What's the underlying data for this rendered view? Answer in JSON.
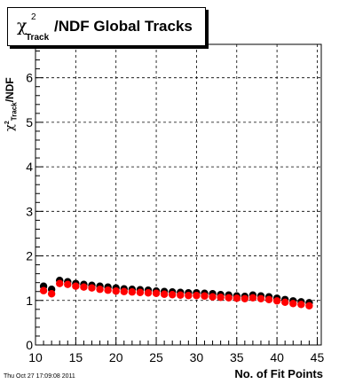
{
  "chart_data": {
    "type": "scatter",
    "title": "/NDF  Global Tracks",
    "title_symbol": "χ",
    "title_sup": "2",
    "title_sub": "Track",
    "ylabel": "/NDF",
    "ylabel_symbol": "χ",
    "ylabel_sup": "2",
    "ylabel_sub": "Track",
    "xlabel": "No. of Fit Points",
    "xlim": [
      10,
      45.5
    ],
    "ylim": [
      0,
      6.75
    ],
    "x_ticks": [
      10,
      15,
      20,
      25,
      30,
      35,
      40,
      45
    ],
    "y_ticks": [
      0,
      1,
      2,
      3,
      4,
      5,
      6
    ],
    "grid": true,
    "series": [
      {
        "color": "#000000",
        "x": [
          11,
          12,
          13,
          14,
          15,
          16,
          17,
          18,
          19,
          20,
          21,
          22,
          23,
          24,
          25,
          26,
          27,
          28,
          29,
          30,
          31,
          32,
          33,
          34,
          35,
          36,
          37,
          38,
          39,
          40,
          41,
          42,
          43,
          44
        ],
        "y": [
          1.32,
          1.25,
          1.45,
          1.42,
          1.38,
          1.36,
          1.34,
          1.32,
          1.3,
          1.28,
          1.26,
          1.25,
          1.24,
          1.23,
          1.21,
          1.2,
          1.19,
          1.18,
          1.17,
          1.17,
          1.16,
          1.15,
          1.13,
          1.12,
          1.1,
          1.09,
          1.12,
          1.1,
          1.08,
          1.05,
          1.02,
          0.99,
          0.97,
          0.95
        ]
      },
      {
        "color": "#ff0000",
        "x": [
          11,
          12,
          13,
          14,
          15,
          16,
          17,
          18,
          19,
          20,
          21,
          22,
          23,
          24,
          25,
          26,
          27,
          28,
          29,
          30,
          31,
          32,
          33,
          34,
          35,
          36,
          37,
          38,
          39,
          40,
          41,
          42,
          43,
          44
        ],
        "y": [
          1.22,
          1.15,
          1.38,
          1.36,
          1.32,
          1.3,
          1.28,
          1.25,
          1.23,
          1.21,
          1.2,
          1.19,
          1.18,
          1.17,
          1.16,
          1.14,
          1.13,
          1.12,
          1.11,
          1.11,
          1.1,
          1.08,
          1.07,
          1.06,
          1.05,
          1.04,
          1.06,
          1.04,
          1.02,
          0.99,
          0.96,
          0.93,
          0.91,
          0.88
        ]
      }
    ]
  },
  "footer": {
    "timestamp": "Thu Oct 27 17:09:08 2011"
  }
}
